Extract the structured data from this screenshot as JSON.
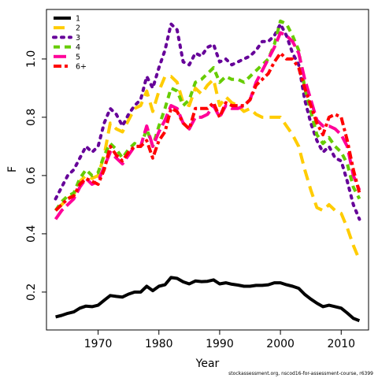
{
  "chart_data": {
    "type": "line",
    "xlabel": "Year",
    "ylabel": "F",
    "xlim": [
      1961.5,
      2014.5
    ],
    "ylim": [
      0.07,
      1.17
    ],
    "xticks": [
      1970,
      1980,
      1990,
      2000,
      2010
    ],
    "xtick_labels": [
      "1970",
      "1980",
      "1990",
      "2000",
      "2010"
    ],
    "yticks": [
      0.2,
      0.4,
      0.6,
      0.8,
      1.0
    ],
    "ytick_labels": [
      "0.2",
      "0.4",
      "0.6",
      "0.8",
      "1.0"
    ],
    "legend_position": "top-left",
    "x": [
      1963,
      1964,
      1965,
      1966,
      1967,
      1968,
      1969,
      1970,
      1971,
      1972,
      1973,
      1974,
      1975,
      1976,
      1977,
      1978,
      1979,
      1980,
      1981,
      1982,
      1983,
      1984,
      1985,
      1986,
      1987,
      1988,
      1989,
      1990,
      1991,
      1992,
      1993,
      1994,
      1995,
      1996,
      1997,
      1998,
      1999,
      2000,
      2001,
      2002,
      2003,
      2004,
      2005,
      2006,
      2007,
      2008,
      2009,
      2010,
      2011,
      2012,
      2013
    ],
    "series": [
      {
        "name": "1",
        "color": "#000000",
        "dash": "solid",
        "values": [
          0.115,
          0.12,
          0.127,
          0.132,
          0.145,
          0.152,
          0.15,
          0.155,
          0.172,
          0.188,
          0.185,
          0.183,
          0.193,
          0.2,
          0.2,
          0.22,
          0.205,
          0.22,
          0.225,
          0.25,
          0.247,
          0.235,
          0.228,
          0.238,
          0.236,
          0.237,
          0.242,
          0.228,
          0.232,
          0.227,
          0.224,
          0.22,
          0.22,
          0.223,
          0.223,
          0.225,
          0.232,
          0.232,
          0.225,
          0.22,
          0.213,
          0.192,
          0.176,
          0.162,
          0.15,
          0.155,
          0.15,
          0.145,
          0.128,
          0.11,
          0.102
        ]
      },
      {
        "name": "2",
        "color": "#FFCC00",
        "dash": "long",
        "values": [
          0.48,
          0.5,
          0.52,
          0.535,
          0.58,
          0.6,
          0.59,
          0.6,
          0.67,
          0.78,
          0.76,
          0.75,
          0.79,
          0.83,
          0.84,
          0.89,
          0.82,
          0.89,
          0.94,
          0.94,
          0.92,
          0.85,
          0.84,
          0.9,
          0.88,
          0.91,
          0.93,
          0.84,
          0.87,
          0.85,
          0.84,
          0.82,
          0.83,
          0.81,
          0.8,
          0.8,
          0.8,
          0.8,
          0.77,
          0.74,
          0.7,
          0.62,
          0.55,
          0.49,
          0.48,
          0.5,
          0.48,
          0.47,
          0.42,
          0.36,
          0.31
        ]
      },
      {
        "name": "3",
        "color": "#660099",
        "dash": "dotted",
        "values": [
          0.52,
          0.56,
          0.6,
          0.62,
          0.66,
          0.7,
          0.68,
          0.7,
          0.78,
          0.83,
          0.81,
          0.77,
          0.81,
          0.84,
          0.86,
          0.94,
          0.9,
          0.97,
          1.03,
          1.12,
          1.1,
          0.99,
          0.98,
          1.02,
          1.01,
          1.04,
          1.05,
          0.99,
          1.0,
          0.98,
          0.99,
          1.0,
          1.01,
          1.03,
          1.06,
          1.06,
          1.08,
          1.12,
          1.08,
          1.02,
          0.98,
          0.86,
          0.78,
          0.72,
          0.68,
          0.7,
          0.66,
          0.65,
          0.58,
          0.5,
          0.45
        ]
      },
      {
        "name": "4",
        "color": "#66CC00",
        "dash": "dashed",
        "values": [
          0.48,
          0.51,
          0.53,
          0.54,
          0.59,
          0.62,
          0.6,
          0.61,
          0.67,
          0.71,
          0.69,
          0.66,
          0.69,
          0.71,
          0.7,
          0.76,
          0.7,
          0.77,
          0.83,
          0.9,
          0.89,
          0.84,
          0.86,
          0.92,
          0.93,
          0.95,
          0.97,
          0.92,
          0.94,
          0.93,
          0.93,
          0.92,
          0.94,
          0.96,
          0.98,
          1.0,
          1.05,
          1.13,
          1.12,
          1.08,
          1.03,
          0.9,
          0.82,
          0.74,
          0.71,
          0.73,
          0.7,
          0.68,
          0.64,
          0.56,
          0.52
        ]
      },
      {
        "name": "5",
        "color": "#FF0099",
        "dash": "longdash",
        "values": [
          0.45,
          0.48,
          0.5,
          0.52,
          0.56,
          0.59,
          0.57,
          0.58,
          0.63,
          0.68,
          0.66,
          0.64,
          0.67,
          0.7,
          0.7,
          0.77,
          0.7,
          0.75,
          0.79,
          0.84,
          0.83,
          0.78,
          0.76,
          0.8,
          0.8,
          0.81,
          0.84,
          0.8,
          0.84,
          0.83,
          0.83,
          0.84,
          0.86,
          0.92,
          0.96,
          1.0,
          1.04,
          1.09,
          1.08,
          1.06,
          1.02,
          0.93,
          0.86,
          0.79,
          0.77,
          0.77,
          0.76,
          0.74,
          0.7,
          0.6,
          0.55
        ]
      },
      {
        "name": "6+",
        "color": "#FF0000",
        "dash": "twodash",
        "values": [
          0.48,
          0.5,
          0.52,
          0.53,
          0.57,
          0.59,
          0.58,
          0.57,
          0.62,
          0.7,
          0.67,
          0.65,
          0.68,
          0.7,
          0.7,
          0.72,
          0.66,
          0.72,
          0.75,
          0.83,
          0.82,
          0.78,
          0.76,
          0.83,
          0.83,
          0.83,
          0.85,
          0.8,
          0.85,
          0.84,
          0.84,
          0.84,
          0.86,
          0.91,
          0.93,
          0.95,
          0.99,
          1.02,
          1.0,
          1.0,
          0.97,
          0.9,
          0.84,
          0.78,
          0.74,
          0.8,
          0.81,
          0.8,
          0.72,
          0.62,
          0.54
        ]
      }
    ]
  },
  "footer_text": "stockassessment.org, nscod16-for-assessment-course, r6399"
}
